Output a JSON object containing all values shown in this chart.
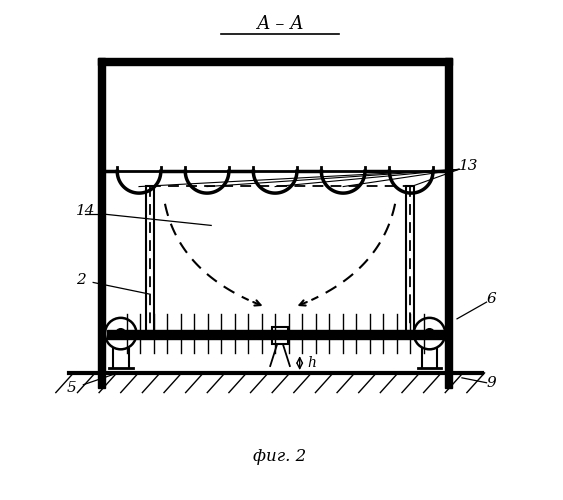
{
  "title": "А – А",
  "caption": "фиг. 2",
  "bg_color": "#ffffff",
  "line_color": "#000000",
  "label_14": "14",
  "label_13": "13",
  "label_2": "2",
  "label_5": "5",
  "label_6": "6",
  "label_9": "9",
  "label_h": "h"
}
